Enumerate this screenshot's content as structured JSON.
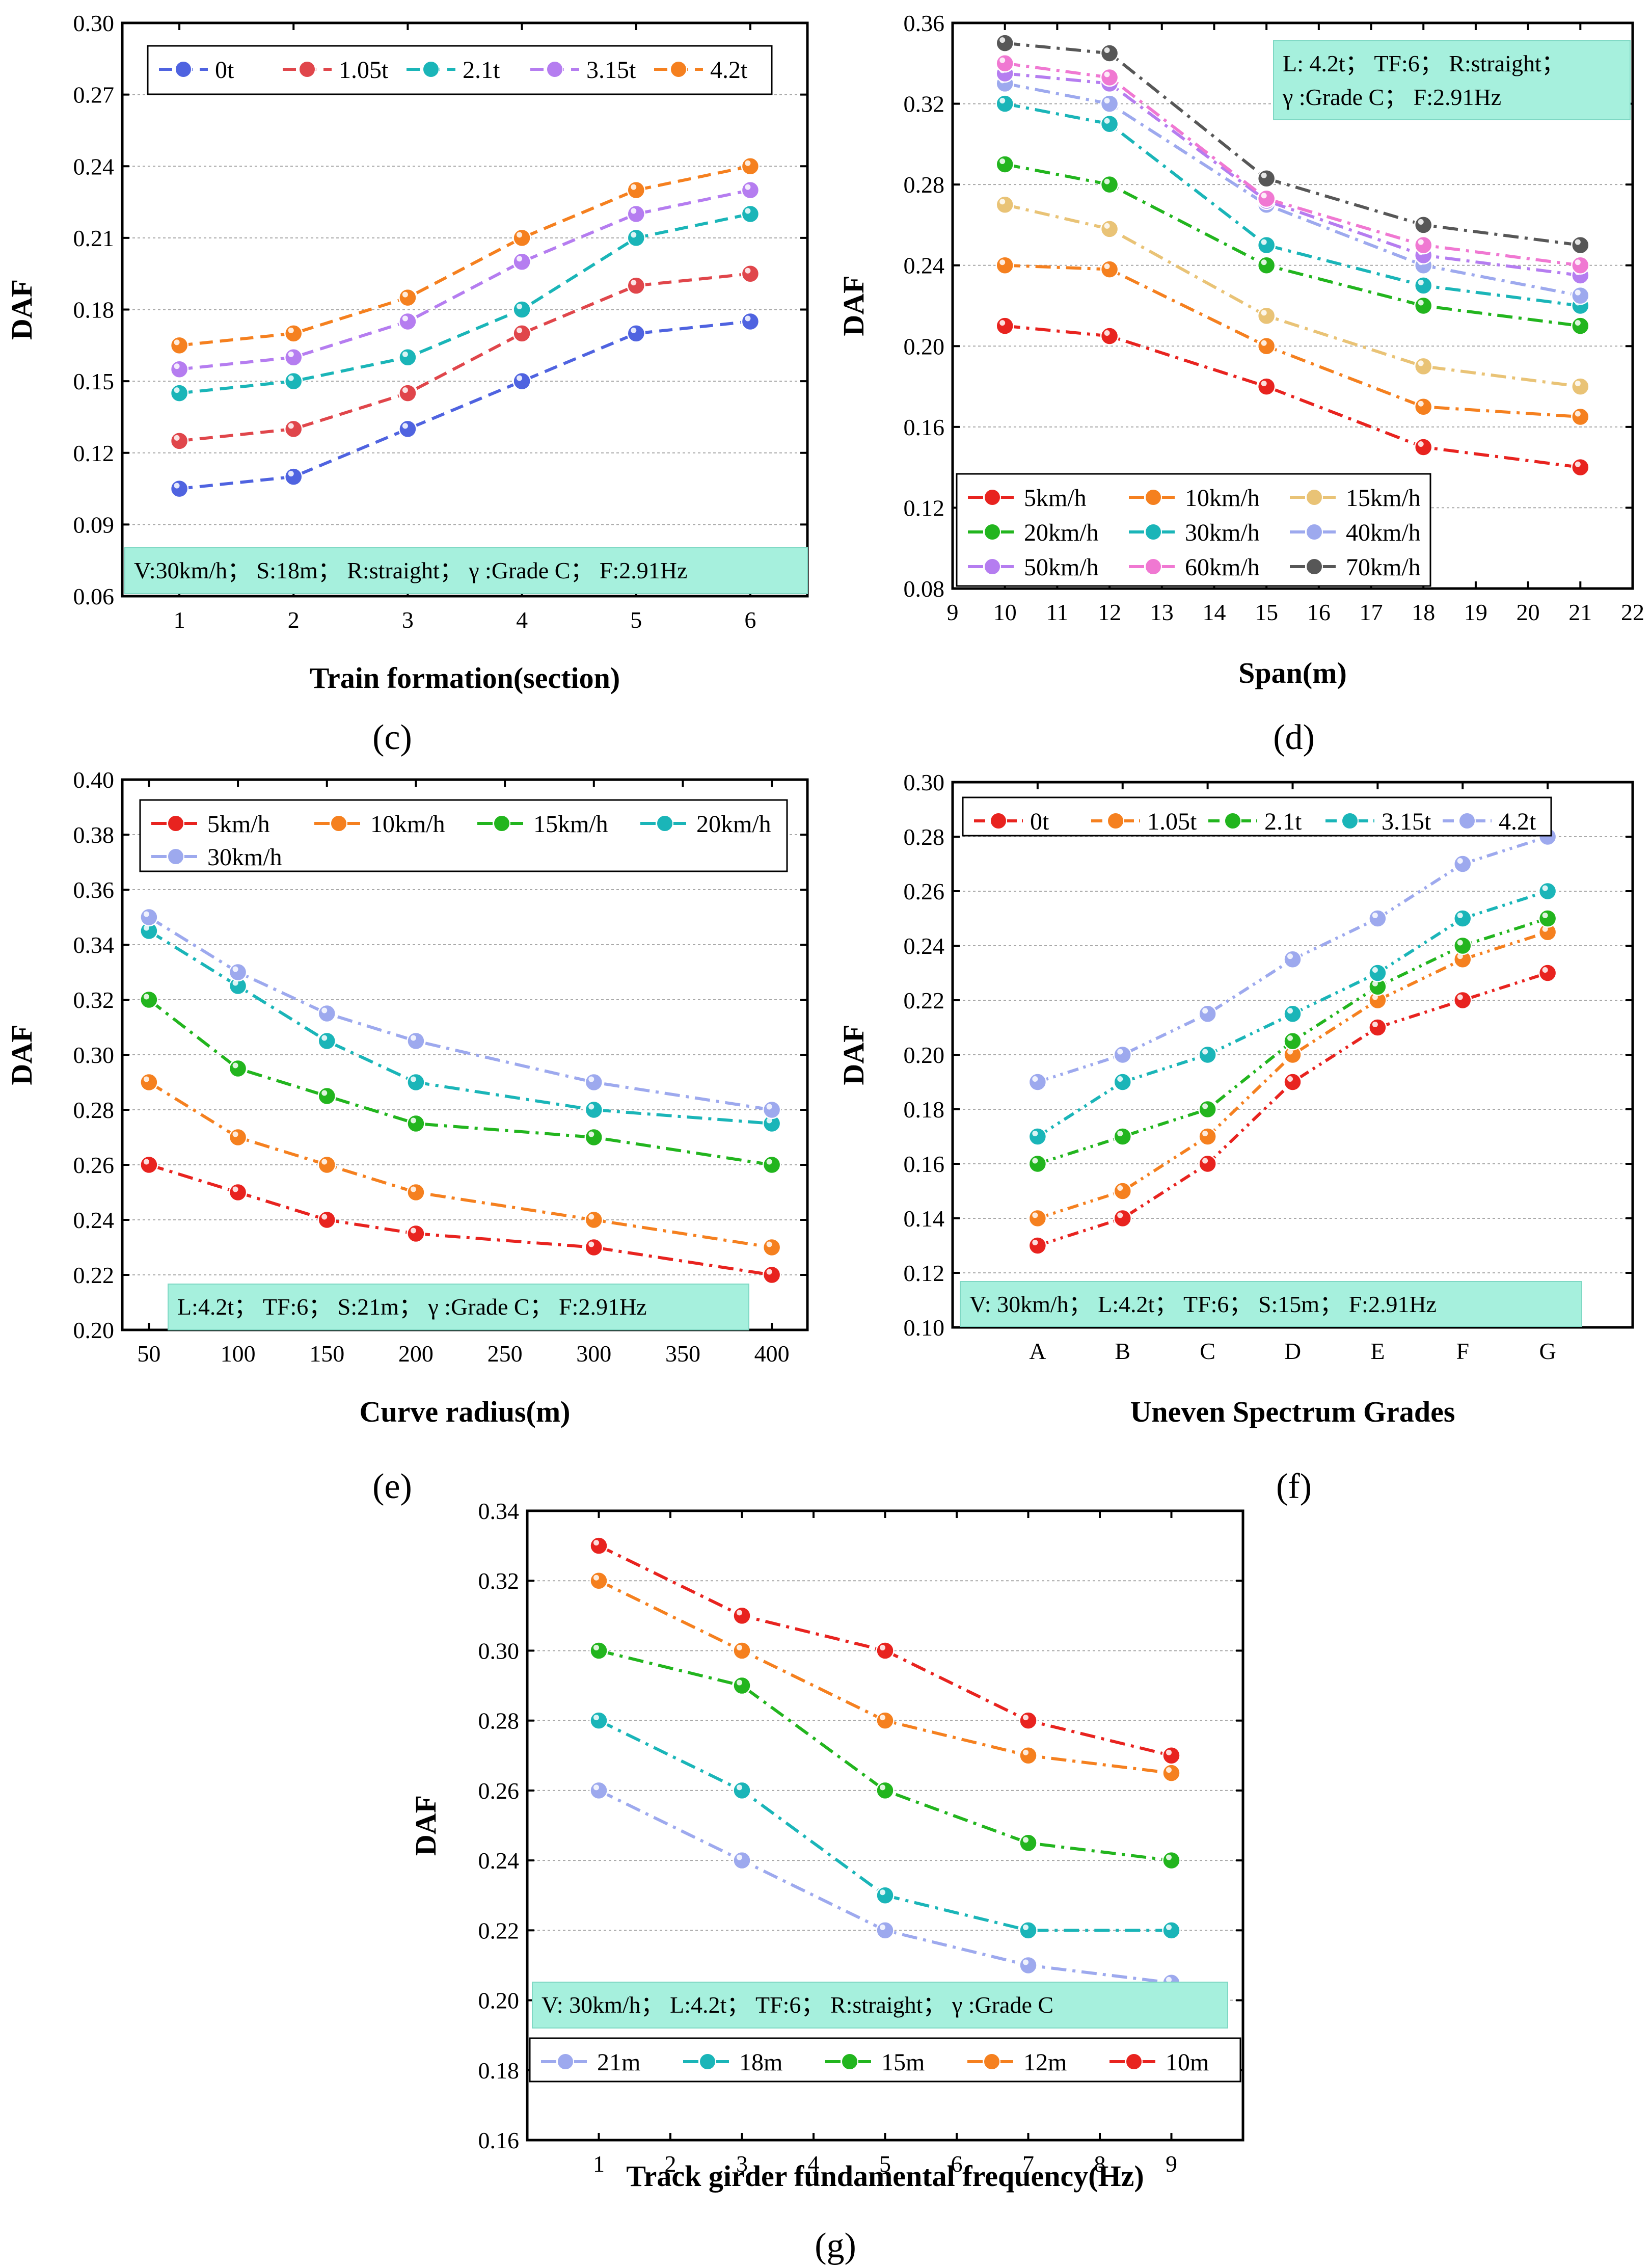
{
  "colors": {
    "red": "#e8231f",
    "orange": "#f5801f",
    "yellow": "#e9c376",
    "green": "#22b51e",
    "cyan": "#1ab5b8",
    "blue": "#4f63e0",
    "lavender": "#9da9ee",
    "lightred": "#e0464b",
    "purple": "#b57df0",
    "pink": "#f078d2",
    "gray": "#575757",
    "annotation_bg": "#a6f0dd"
  },
  "chart_data": [
    {
      "id": "c",
      "type": "line",
      "panel_label": "(c)",
      "xlabel": "Train formation(section)",
      "ylabel": "DAF",
      "xlim": [
        0.5,
        6.5
      ],
      "ylim": [
        0.06,
        0.3
      ],
      "xticks": [
        1,
        2,
        3,
        4,
        5,
        6
      ],
      "xtick_labels": [
        "1",
        "2",
        "3",
        "4",
        "5",
        "6"
      ],
      "yticks": [
        0.06,
        0.09,
        0.12,
        0.15,
        0.18,
        0.21,
        0.24,
        0.27,
        0.3
      ],
      "ytick_labels": [
        "0.06",
        "0.09",
        "0.12",
        "0.15",
        "0.18",
        "0.21",
        "0.24",
        "0.27",
        "0.30"
      ],
      "x": [
        1,
        2,
        3,
        4,
        5,
        6
      ],
      "series": [
        {
          "name": "0t",
          "color": "#4f63e0",
          "dash": "dash",
          "values": [
            0.105,
            0.11,
            0.13,
            0.15,
            0.17,
            0.175
          ]
        },
        {
          "name": "1.05t",
          "color": "#e0464b",
          "dash": "dash",
          "values": [
            0.125,
            0.13,
            0.145,
            0.17,
            0.19,
            0.195
          ]
        },
        {
          "name": "2.1t",
          "color": "#1ab5b8",
          "dash": "dash",
          "values": [
            0.145,
            0.15,
            0.16,
            0.18,
            0.21,
            0.22
          ]
        },
        {
          "name": "3.15t",
          "color": "#b57df0",
          "dash": "dash",
          "values": [
            0.155,
            0.16,
            0.175,
            0.2,
            0.22,
            0.23
          ]
        },
        {
          "name": "4.2t",
          "color": "#f5801f",
          "dash": "dash",
          "values": [
            0.165,
            0.17,
            0.185,
            0.21,
            0.23,
            0.24
          ]
        }
      ],
      "legend": {
        "position": "top-left",
        "columns": 5
      },
      "annotation": "V:30km/h；  S:18m；  R:straight；  γ :Grade C；  F:2.91Hz",
      "annotation_position": "bottom-left"
    },
    {
      "id": "d",
      "type": "line",
      "panel_label": "(d)",
      "xlabel": "Span(m)",
      "ylabel": "DAF",
      "xlim": [
        9,
        22
      ],
      "ylim": [
        0.08,
        0.36
      ],
      "xticks": [
        9,
        10,
        11,
        12,
        13,
        14,
        15,
        16,
        17,
        18,
        19,
        20,
        21,
        22
      ],
      "xtick_labels": [
        "9",
        "10",
        "11",
        "12",
        "13",
        "14",
        "15",
        "16",
        "17",
        "18",
        "19",
        "20",
        "21",
        "22"
      ],
      "yticks": [
        0.08,
        0.12,
        0.16,
        0.2,
        0.24,
        0.28,
        0.32,
        0.36
      ],
      "ytick_labels": [
        "0.08",
        "0.12",
        "0.16",
        "0.20",
        "0.24",
        "0.28",
        "0.32",
        "0.36"
      ],
      "x": [
        10,
        12,
        15,
        18,
        21
      ],
      "series": [
        {
          "name": "5km/h",
          "color": "#e8231f",
          "dash": "dashdot",
          "values": [
            0.21,
            0.205,
            0.18,
            0.15,
            0.14
          ]
        },
        {
          "name": "10km/h",
          "color": "#f5801f",
          "dash": "dashdot",
          "values": [
            0.24,
            0.238,
            0.2,
            0.17,
            0.165
          ]
        },
        {
          "name": "15km/h",
          "color": "#e9c376",
          "dash": "dashdot",
          "values": [
            0.27,
            0.258,
            0.215,
            0.19,
            0.18
          ]
        },
        {
          "name": "20km/h",
          "color": "#22b51e",
          "dash": "dashdot",
          "values": [
            0.29,
            0.28,
            0.24,
            0.22,
            0.21
          ]
        },
        {
          "name": "30km/h",
          "color": "#1ab5b8",
          "dash": "dashdot",
          "values": [
            0.32,
            0.31,
            0.25,
            0.23,
            0.22
          ]
        },
        {
          "name": "40km/h",
          "color": "#9da9ee",
          "dash": "dashdot",
          "values": [
            0.33,
            0.32,
            0.27,
            0.24,
            0.225
          ]
        },
        {
          "name": "50km/h",
          "color": "#b57df0",
          "dash": "dashdot",
          "values": [
            0.335,
            0.33,
            0.272,
            0.245,
            0.235
          ]
        },
        {
          "name": "60km/h",
          "color": "#f078d2",
          "dash": "dashdot",
          "values": [
            0.34,
            0.333,
            0.273,
            0.25,
            0.24
          ]
        },
        {
          "name": "70km/h",
          "color": "#575757",
          "dash": "dashdot",
          "values": [
            0.35,
            0.345,
            0.283,
            0.26,
            0.25
          ]
        }
      ],
      "legend": {
        "position": "bottom-left",
        "columns": 3
      },
      "annotation": "L: 4.2t；  TF:6；  R:straight；\nγ :Grade C；  F:2.91Hz",
      "annotation_position": "top-right"
    },
    {
      "id": "e",
      "type": "line",
      "panel_label": "(e)",
      "xlabel": "Curve radius(m)",
      "ylabel": "DAF",
      "xlim": [
        35,
        420
      ],
      "ylim": [
        0.2,
        0.4
      ],
      "xticks": [
        50,
        100,
        150,
        200,
        250,
        300,
        350,
        400
      ],
      "xtick_labels": [
        "50",
        "100",
        "150",
        "200",
        "250",
        "300",
        "350",
        "400"
      ],
      "yticks": [
        0.2,
        0.22,
        0.24,
        0.26,
        0.28,
        0.3,
        0.32,
        0.34,
        0.36,
        0.38,
        0.4
      ],
      "ytick_labels": [
        "0.20",
        "0.22",
        "0.24",
        "0.26",
        "0.28",
        "0.30",
        "0.32",
        "0.34",
        "0.36",
        "0.38",
        "0.40"
      ],
      "x": [
        50,
        100,
        150,
        200,
        300,
        400
      ],
      "series": [
        {
          "name": "5km/h",
          "color": "#e8231f",
          "dash": "dashdot",
          "values": [
            0.26,
            0.25,
            0.24,
            0.235,
            0.23,
            0.22
          ]
        },
        {
          "name": "10km/h",
          "color": "#f5801f",
          "dash": "dashdot",
          "values": [
            0.29,
            0.27,
            0.26,
            0.25,
            0.24,
            0.23
          ]
        },
        {
          "name": "15km/h",
          "color": "#22b51e",
          "dash": "dashdot",
          "values": [
            0.32,
            0.295,
            0.285,
            0.275,
            0.27,
            0.26
          ]
        },
        {
          "name": "20km/h",
          "color": "#1ab5b8",
          "dash": "dashdot",
          "values": [
            0.345,
            0.325,
            0.305,
            0.29,
            0.28,
            0.275
          ]
        },
        {
          "name": "30km/h",
          "color": "#9da9ee",
          "dash": "dashdot",
          "values": [
            0.35,
            0.33,
            0.315,
            0.305,
            0.29,
            0.28
          ]
        }
      ],
      "legend": {
        "position": "top",
        "columns": 4
      },
      "annotation": "L:4.2t；  TF:6；  S:21m；  γ :Grade C；  F:2.91Hz",
      "annotation_position": "bottom-left"
    },
    {
      "id": "f",
      "type": "line",
      "panel_label": "(f)",
      "xlabel": "Uneven Spectrum Grades",
      "ylabel": "DAF",
      "xlim": [
        0,
        8
      ],
      "ylim": [
        0.1,
        0.3
      ],
      "xticks": [
        1,
        2,
        3,
        4,
        5,
        6,
        7
      ],
      "xtick_labels": [
        "A",
        "B",
        "C",
        "D",
        "E",
        "F",
        "G"
      ],
      "categories": [
        "A",
        "B",
        "C",
        "D",
        "E",
        "F",
        "G"
      ],
      "yticks": [
        0.1,
        0.12,
        0.14,
        0.16,
        0.18,
        0.2,
        0.22,
        0.24,
        0.26,
        0.28,
        0.3
      ],
      "ytick_labels": [
        "0.10",
        "0.12",
        "0.14",
        "0.16",
        "0.18",
        "0.20",
        "0.22",
        "0.24",
        "0.26",
        "0.28",
        "0.30"
      ],
      "x": [
        1,
        2,
        3,
        4,
        5,
        6,
        7
      ],
      "series": [
        {
          "name": "0t",
          "color": "#e8231f",
          "dash": "dashdotdot",
          "values": [
            0.13,
            0.14,
            0.16,
            0.19,
            0.21,
            0.22,
            0.23
          ]
        },
        {
          "name": "1.05t",
          "color": "#f5801f",
          "dash": "dashdotdot",
          "values": [
            0.14,
            0.15,
            0.17,
            0.2,
            0.22,
            0.235,
            0.245
          ]
        },
        {
          "name": "2.1t",
          "color": "#22b51e",
          "dash": "dashdotdot",
          "values": [
            0.16,
            0.17,
            0.18,
            0.205,
            0.225,
            0.24,
            0.25
          ]
        },
        {
          "name": "3.15t",
          "color": "#1ab5b8",
          "dash": "dashdotdot",
          "values": [
            0.17,
            0.19,
            0.2,
            0.215,
            0.23,
            0.25,
            0.26
          ]
        },
        {
          "name": "4.2t",
          "color": "#9da9ee",
          "dash": "dashdotdot",
          "values": [
            0.19,
            0.2,
            0.215,
            0.235,
            0.25,
            0.27,
            0.28
          ]
        }
      ],
      "legend": {
        "position": "top-left",
        "columns": 5
      },
      "annotation": "V:  30km/h；  L:4.2t；  TF:6；  S:15m；  F:2.91Hz",
      "annotation_position": "bottom-left"
    },
    {
      "id": "g",
      "type": "line",
      "panel_label": "(g)",
      "xlabel": "Track girder fundamental frequency(Hz)",
      "ylabel": "DAF",
      "xlim": [
        0,
        10
      ],
      "ylim": [
        0.16,
        0.34
      ],
      "xticks": [
        1,
        2,
        3,
        4,
        5,
        6,
        7,
        8,
        9
      ],
      "xtick_labels": [
        "1",
        "2",
        "3",
        "4",
        "5",
        "6",
        "7",
        "8",
        "9"
      ],
      "yticks": [
        0.16,
        0.18,
        0.2,
        0.22,
        0.24,
        0.26,
        0.28,
        0.3,
        0.32,
        0.34
      ],
      "ytick_labels": [
        "0.16",
        "0.18",
        "0.20",
        "0.22",
        "0.24",
        "0.26",
        "0.28",
        "0.30",
        "0.32",
        "0.34"
      ],
      "x": [
        1,
        3,
        5,
        7,
        9
      ],
      "series": [
        {
          "name": "21m",
          "color": "#9da9ee",
          "dash": "dashdot",
          "values": [
            0.26,
            0.24,
            0.22,
            0.21,
            0.205
          ]
        },
        {
          "name": "18m",
          "color": "#1ab5b8",
          "dash": "dashdot",
          "values": [
            0.28,
            0.26,
            0.23,
            0.22,
            0.22
          ]
        },
        {
          "name": "15m",
          "color": "#22b51e",
          "dash": "dashdot",
          "values": [
            0.3,
            0.29,
            0.26,
            0.245,
            0.24
          ]
        },
        {
          "name": "12m",
          "color": "#f5801f",
          "dash": "dashdot",
          "values": [
            0.32,
            0.3,
            0.28,
            0.27,
            0.265
          ]
        },
        {
          "name": "10m",
          "color": "#e8231f",
          "dash": "dashdot",
          "values": [
            0.33,
            0.31,
            0.3,
            0.28,
            0.27
          ]
        }
      ],
      "legend": {
        "position": "bottom",
        "columns": 5
      },
      "annotation": "V:  30km/h；  L:4.2t；  TF:6；  R:straight；  γ :Grade C",
      "annotation_position": "bottom-left"
    }
  ]
}
